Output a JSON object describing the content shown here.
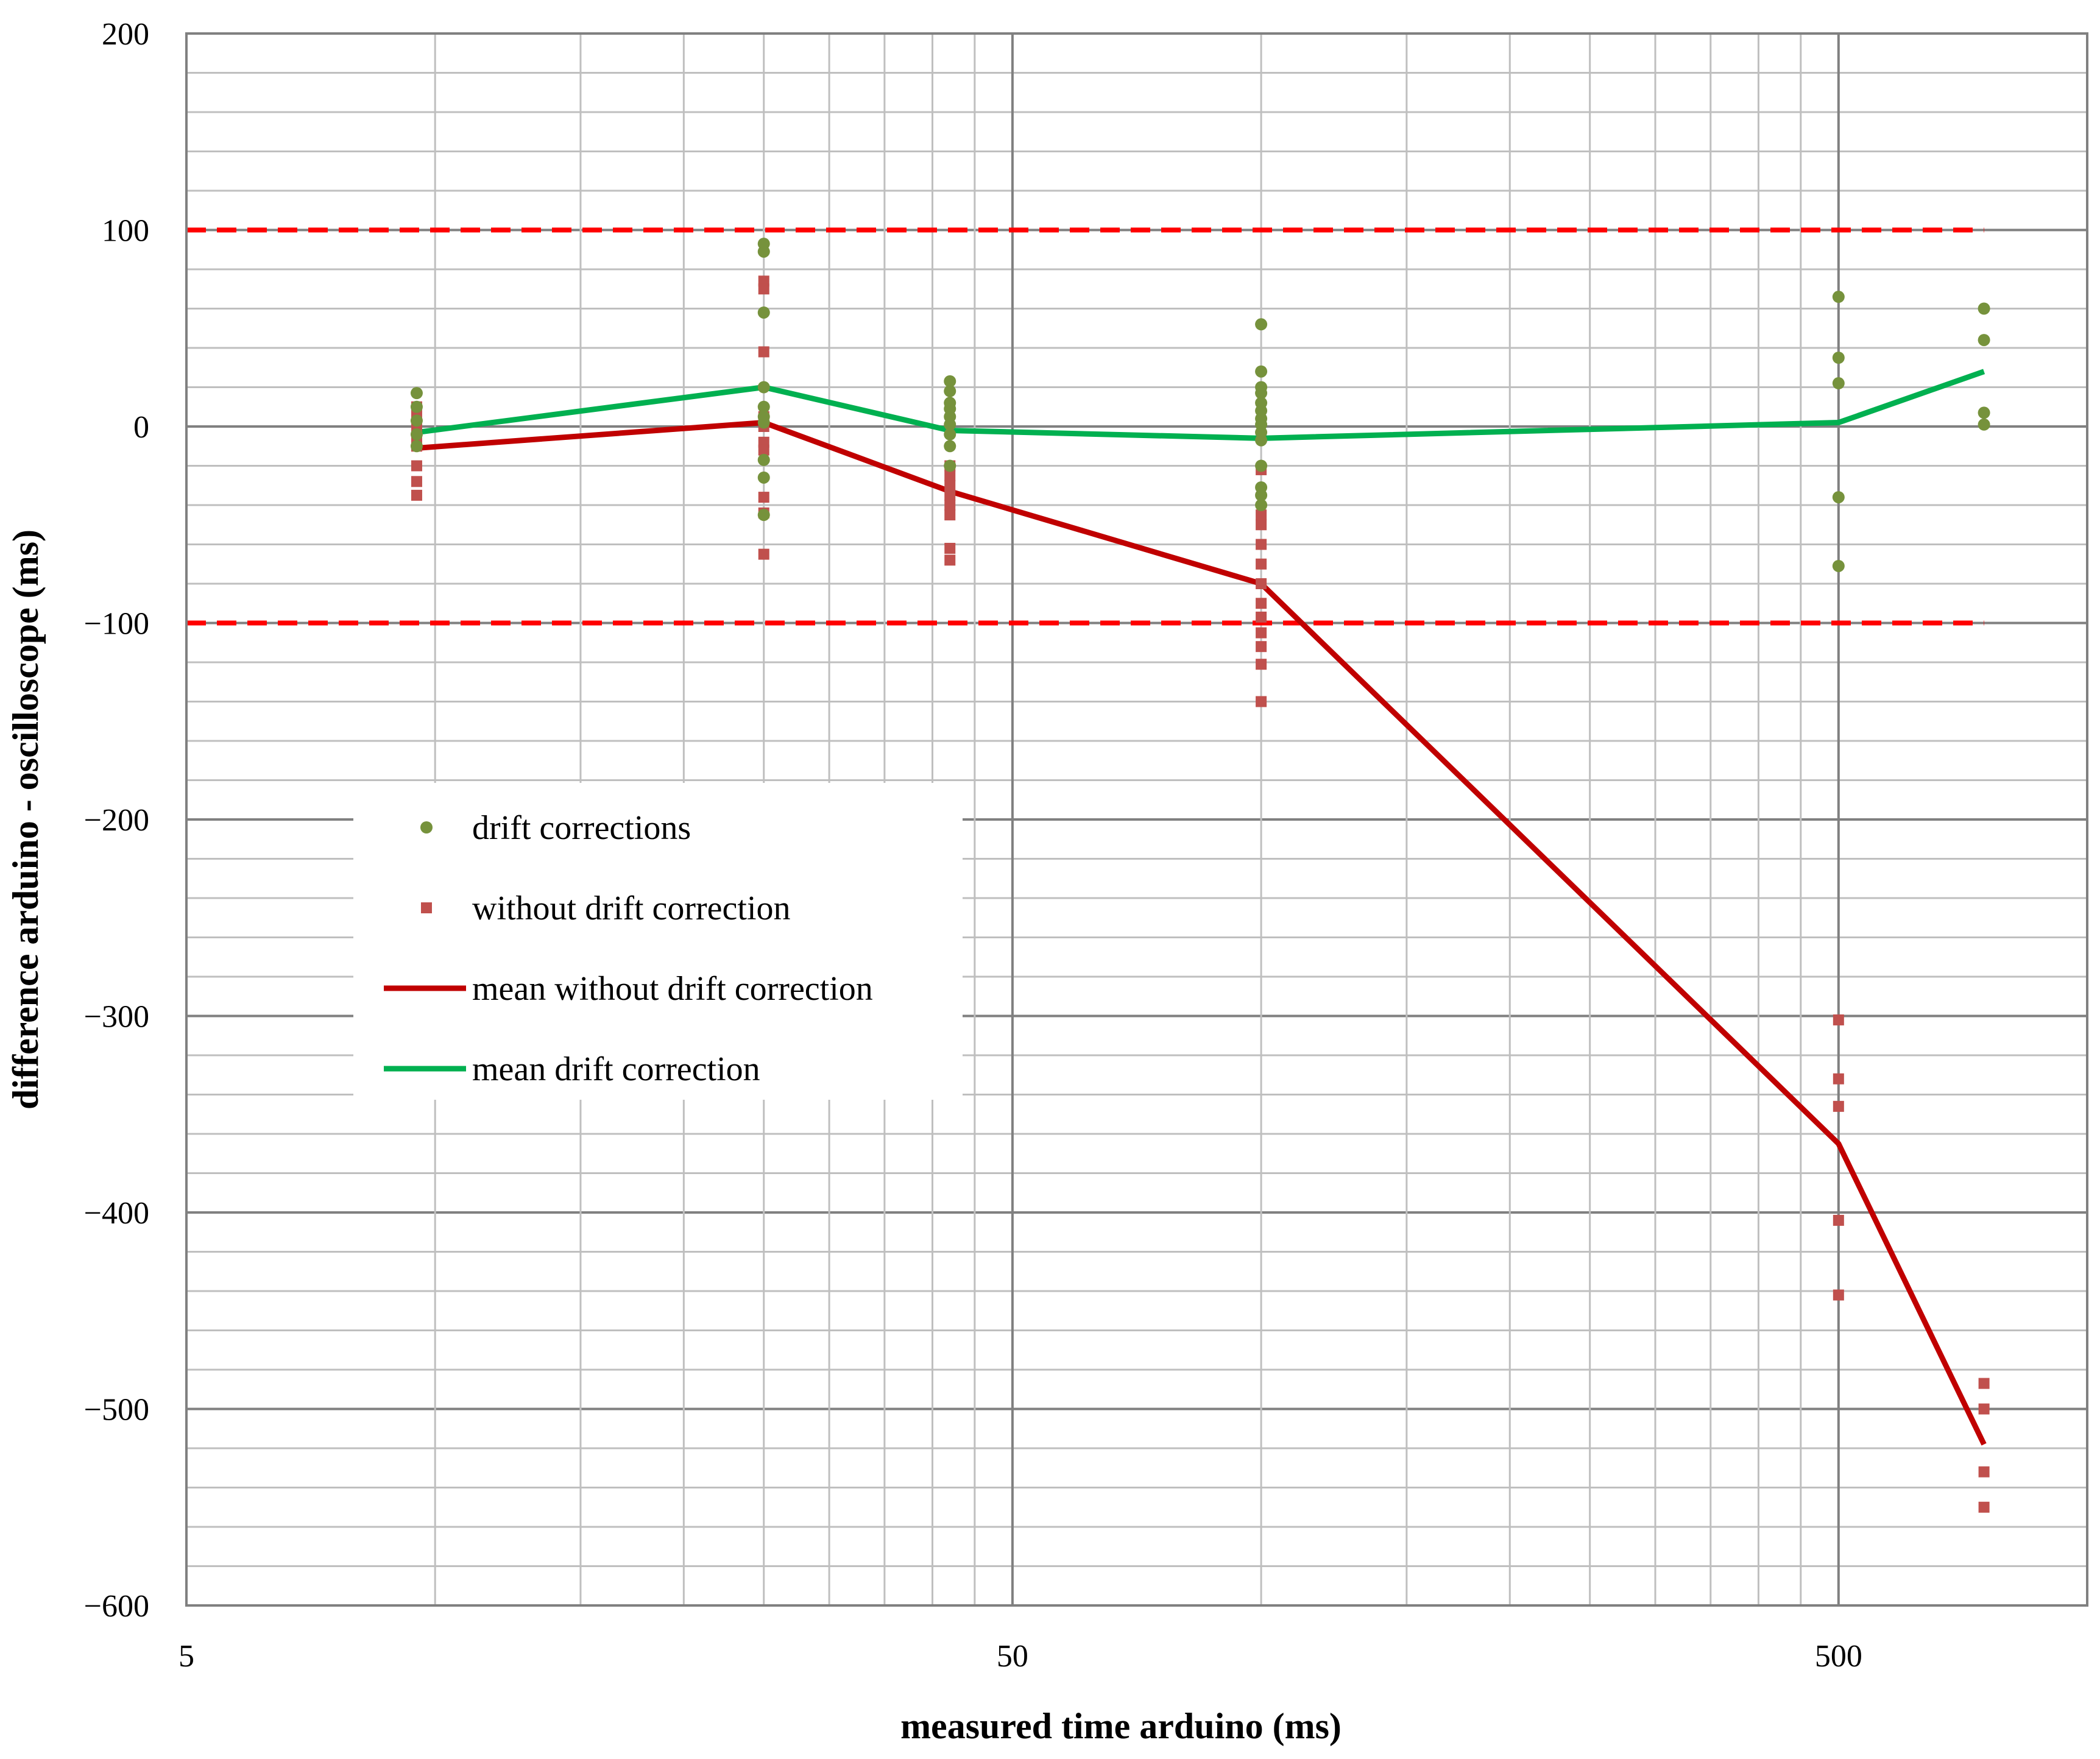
{
  "chart_data": {
    "type": "scatter",
    "title": "",
    "xlabel": "measured  time  arduino (ms)",
    "ylabel": "difference arduino - oscilloscope  (ms)",
    "x_scale": "log",
    "xlim": [
      5,
      1000
    ],
    "ylim": [
      -600,
      200
    ],
    "x_tick_labels": [
      "5",
      "50",
      "500"
    ],
    "y_tick_labels": [
      "200",
      "100",
      "0",
      "−100",
      "−200",
      "−300",
      "−400",
      "−500",
      "−600"
    ],
    "grid": true,
    "legend_position": "center-left",
    "reference_lines": [
      {
        "y": 100,
        "color": "#FF0000",
        "style": "dashed"
      },
      {
        "y": -100,
        "color": "#FF0000",
        "style": "dashed"
      }
    ],
    "series": [
      {
        "name": "drift corrections",
        "kind": "scatter",
        "marker": "circle",
        "color": "#76923C",
        "points": [
          [
            9.5,
            17
          ],
          [
            9.5,
            10
          ],
          [
            9.5,
            3
          ],
          [
            9.5,
            -4
          ],
          [
            9.5,
            -10
          ],
          [
            25,
            93
          ],
          [
            25,
            89
          ],
          [
            25,
            58
          ],
          [
            25,
            20
          ],
          [
            25,
            10
          ],
          [
            25,
            5
          ],
          [
            25,
            2
          ],
          [
            25,
            -17
          ],
          [
            25,
            -26
          ],
          [
            25,
            -45
          ],
          [
            42,
            23
          ],
          [
            42,
            18
          ],
          [
            42,
            12
          ],
          [
            42,
            9
          ],
          [
            42,
            5
          ],
          [
            42,
            1
          ],
          [
            42,
            -4
          ],
          [
            42,
            -10
          ],
          [
            42,
            -20
          ],
          [
            100,
            52
          ],
          [
            100,
            28
          ],
          [
            100,
            20
          ],
          [
            100,
            17
          ],
          [
            100,
            12
          ],
          [
            100,
            8
          ],
          [
            100,
            4
          ],
          [
            100,
            1
          ],
          [
            100,
            -3
          ],
          [
            100,
            -7
          ],
          [
            100,
            -20
          ],
          [
            100,
            -31
          ],
          [
            100,
            -35
          ],
          [
            100,
            -40
          ],
          [
            500,
            66
          ],
          [
            500,
            35
          ],
          [
            500,
            22
          ],
          [
            500,
            -36
          ],
          [
            500,
            -71
          ],
          [
            750,
            60
          ],
          [
            750,
            44
          ],
          [
            750,
            7
          ],
          [
            750,
            1
          ]
        ]
      },
      {
        "name": "without drift correction",
        "kind": "scatter",
        "marker": "square",
        "color": "#C0504D",
        "points": [
          [
            9.5,
            10
          ],
          [
            9.5,
            5
          ],
          [
            9.5,
            0
          ],
          [
            9.5,
            -5
          ],
          [
            9.5,
            -10
          ],
          [
            9.5,
            -20
          ],
          [
            9.5,
            -28
          ],
          [
            9.5,
            -35
          ],
          [
            25,
            74
          ],
          [
            25,
            70
          ],
          [
            25,
            38
          ],
          [
            25,
            5
          ],
          [
            25,
            0
          ],
          [
            25,
            -8
          ],
          [
            25,
            -12
          ],
          [
            25,
            -36
          ],
          [
            25,
            -44
          ],
          [
            25,
            -65
          ],
          [
            42,
            -20
          ],
          [
            42,
            -25
          ],
          [
            42,
            -30
          ],
          [
            42,
            -35
          ],
          [
            42,
            -40
          ],
          [
            42,
            -45
          ],
          [
            42,
            -62
          ],
          [
            42,
            -68
          ],
          [
            100,
            -22
          ],
          [
            100,
            -45
          ],
          [
            100,
            -50
          ],
          [
            100,
            -60
          ],
          [
            100,
            -70
          ],
          [
            100,
            -80
          ],
          [
            100,
            -90
          ],
          [
            100,
            -97
          ],
          [
            100,
            -105
          ],
          [
            100,
            -112
          ],
          [
            100,
            -121
          ],
          [
            100,
            -140
          ],
          [
            500,
            -302
          ],
          [
            500,
            -332
          ],
          [
            500,
            -346
          ],
          [
            500,
            -404
          ],
          [
            500,
            -442
          ],
          [
            750,
            -487
          ],
          [
            750,
            -500
          ],
          [
            750,
            -532
          ],
          [
            750,
            -550
          ]
        ]
      },
      {
        "name": "mean without drift correction",
        "kind": "line",
        "color": "#C00000",
        "points": [
          [
            9.5,
            -11
          ],
          [
            25,
            2
          ],
          [
            42,
            -33
          ],
          [
            100,
            -80
          ],
          [
            500,
            -365
          ],
          [
            750,
            -518
          ]
        ]
      },
      {
        "name": "mean drift correction",
        "kind": "line",
        "color": "#00B050",
        "points": [
          [
            9.5,
            -3
          ],
          [
            25,
            20
          ],
          [
            42,
            -2
          ],
          [
            100,
            -6
          ],
          [
            500,
            2
          ],
          [
            750,
            28
          ]
        ]
      }
    ]
  }
}
